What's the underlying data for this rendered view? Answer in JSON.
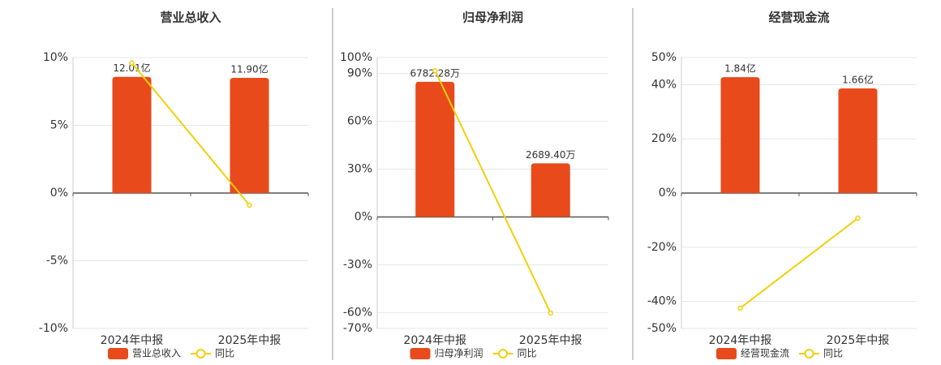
{
  "chart_data": [
    {
      "type": "combo",
      "title": "营业总收入",
      "categories": [
        "2024年中报",
        "2025年中报"
      ],
      "series": [
        {
          "name": "营业总收入",
          "type": "bar",
          "color": "#e84a1b",
          "axis": "y2",
          "values": [
            12.01,
            11.9
          ],
          "value_labels": [
            "12.01亿",
            "11.90亿"
          ]
        },
        {
          "name": "同比",
          "type": "line",
          "color": "#f2cf0c",
          "values": [
            9.6,
            -0.9
          ]
        }
      ],
      "ylim": [
        -10,
        10
      ],
      "yticks": [
        {
          "value": -10,
          "label": "-10%"
        },
        {
          "value": -5,
          "label": "-5%"
        },
        {
          "value": 0,
          "label": "0%"
        },
        {
          "value": 5,
          "label": "5%"
        },
        {
          "value": 10,
          "label": "10%"
        }
      ],
      "y2lim": [
        -14,
        14
      ],
      "grid": true,
      "legend": "bottom"
    },
    {
      "type": "combo",
      "title": "归母净利润",
      "categories": [
        "2024年中报",
        "2025年中报"
      ],
      "series": [
        {
          "name": "归母净利润",
          "type": "bar",
          "color": "#e84a1b",
          "axis": "y2",
          "values": [
            6782.28,
            2689.4
          ],
          "value_labels": [
            "6782.28万",
            "2689.40万"
          ]
        },
        {
          "name": "同比",
          "type": "line",
          "color": "#f2cf0c",
          "values": [
            91.8,
            -60.3
          ]
        }
      ],
      "ylim": [
        -70,
        100
      ],
      "yticks": [
        {
          "value": -70,
          "label": "-70%"
        },
        {
          "value": -60,
          "label": "-60%"
        },
        {
          "value": -30,
          "label": "-30%"
        },
        {
          "value": 0,
          "label": "0%"
        },
        {
          "value": 30,
          "label": "30%"
        },
        {
          "value": 60,
          "label": "60%"
        },
        {
          "value": 90,
          "label": "90%"
        },
        {
          "value": 100,
          "label": "100%"
        }
      ],
      "y2lim": [
        -5600,
        8000
      ],
      "grid": true,
      "legend": "bottom"
    },
    {
      "type": "combo",
      "title": "经营现金流",
      "categories": [
        "2024年中报",
        "2025年中报"
      ],
      "series": [
        {
          "name": "经营现金流",
          "type": "bar",
          "color": "#e84a1b",
          "axis": "y2",
          "values": [
            1.84,
            1.66
          ],
          "value_labels": [
            "1.84亿",
            "1.66亿"
          ]
        },
        {
          "name": "同比",
          "type": "line",
          "color": "#f2cf0c",
          "values": [
            -42.5,
            -9.3
          ]
        }
      ],
      "ylim": [
        -50,
        50
      ],
      "yticks": [
        {
          "value": -50,
          "label": "-50%"
        },
        {
          "value": -40,
          "label": "-40%"
        },
        {
          "value": -20,
          "label": "-20%"
        },
        {
          "value": 0,
          "label": "0%"
        },
        {
          "value": 20,
          "label": "20%"
        },
        {
          "value": 40,
          "label": "40%"
        },
        {
          "value": 50,
          "label": "50%"
        }
      ],
      "y2lim": [
        -2.15,
        2.15
      ],
      "grid": true,
      "legend": "bottom"
    }
  ]
}
